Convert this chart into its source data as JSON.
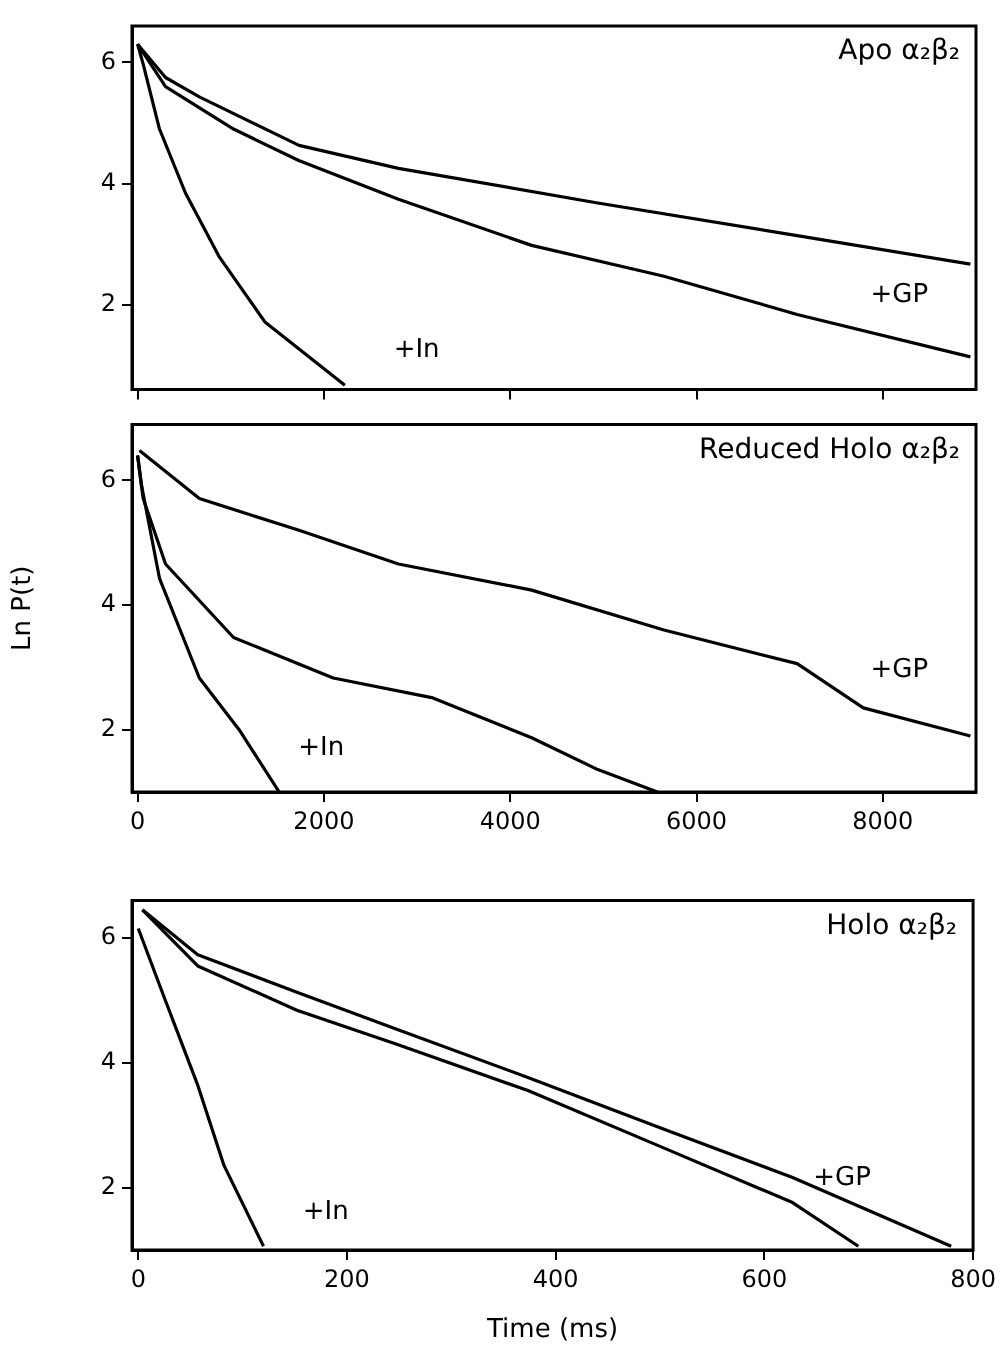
{
  "chart_data": [
    {
      "type": "line",
      "title": "Apo α₂β₂",
      "xlim": [
        -60,
        9000
      ],
      "ylim": [
        0.6,
        6.6
      ],
      "xticks": [
        0,
        2000,
        4000,
        6000,
        8000
      ],
      "yticks": [
        2,
        4,
        6
      ],
      "tick_labels": "y",
      "annotations": [
        "+GP",
        "+In"
      ],
      "series": [
        {
          "color": "#000000",
          "x": [
            0,
            300,
            663,
            1733,
            2800,
            4940,
            7080,
            8940
          ],
          "values": [
            6.3,
            5.75,
            5.43,
            4.63,
            4.25,
            3.68,
            3.14,
            2.67
          ]
        },
        {
          "color": "#000000",
          "x": [
            0,
            300,
            1030,
            1730,
            2800,
            4230,
            5650,
            7080,
            8940
          ],
          "values": [
            6.3,
            5.6,
            4.9,
            4.38,
            3.74,
            2.98,
            2.47,
            1.84,
            1.14
          ]
        },
        {
          "color": "#000000",
          "x": [
            0,
            60,
            235,
            515,
            877,
            1370,
            2225
          ],
          "values": [
            6.3,
            5.97,
            4.9,
            3.84,
            2.79,
            1.71,
            0.67
          ]
        }
      ]
    },
    {
      "type": "line",
      "title": "Reduced Holo α₂β₂",
      "ylabel": "Ln P(t)",
      "xlim": [
        -60,
        9000
      ],
      "ylim": [
        1,
        6.9
      ],
      "xticks": [
        0,
        2000,
        4000,
        6000,
        8000
      ],
      "yticks": [
        2,
        4,
        6
      ],
      "annotations": [
        "+GP",
        "+In"
      ],
      "series": [
        {
          "color": "#000000",
          "x": [
            20,
            663,
            1733,
            2800,
            4230,
            5650,
            7080,
            7790,
            8940
          ],
          "values": [
            6.48,
            5.71,
            5.2,
            4.66,
            4.24,
            3.6,
            3.06,
            2.35,
            1.9
          ]
        },
        {
          "color": "#000000",
          "x": [
            0,
            60,
            300,
            1030,
            2100,
            3170,
            4230,
            4940,
            5580
          ],
          "values": [
            6.4,
            5.71,
            4.66,
            3.48,
            2.83,
            2.51,
            1.87,
            1.36,
            1
          ]
        },
        {
          "color": "#000000",
          "x": [
            0,
            40,
            235,
            663,
            1090,
            1520
          ],
          "values": [
            6.4,
            5.94,
            4.43,
            2.83,
            2.0,
            1
          ]
        }
      ]
    },
    {
      "type": "line",
      "title": "Holo α₂β₂",
      "xlabel": "Time (ms)",
      "xlim": [
        -6,
        800
      ],
      "ylim": [
        1,
        6.6
      ],
      "xticks": [
        0,
        200,
        400,
        600,
        800
      ],
      "yticks": [
        2,
        4,
        6
      ],
      "annotations": [
        "+GP",
        "+In"
      ],
      "series": [
        {
          "color": "#000000",
          "x": [
            4,
            57,
            152,
            247,
            374,
            500,
            627,
            779
          ],
          "values": [
            6.45,
            5.73,
            5.13,
            4.54,
            3.76,
            2.96,
            2.16,
            1.06
          ]
        },
        {
          "color": "#000000",
          "x": [
            4,
            57,
            152,
            247,
            374,
            500,
            627,
            690
          ],
          "values": [
            6.45,
            5.55,
            4.84,
            4.3,
            3.55,
            2.66,
            1.76,
            1.06
          ]
        },
        {
          "color": "#000000",
          "x": [
            0,
            25,
            57,
            82,
            120
          ],
          "values": [
            6.15,
            5.04,
            3.64,
            2.36,
            1.06
          ]
        }
      ]
    }
  ]
}
